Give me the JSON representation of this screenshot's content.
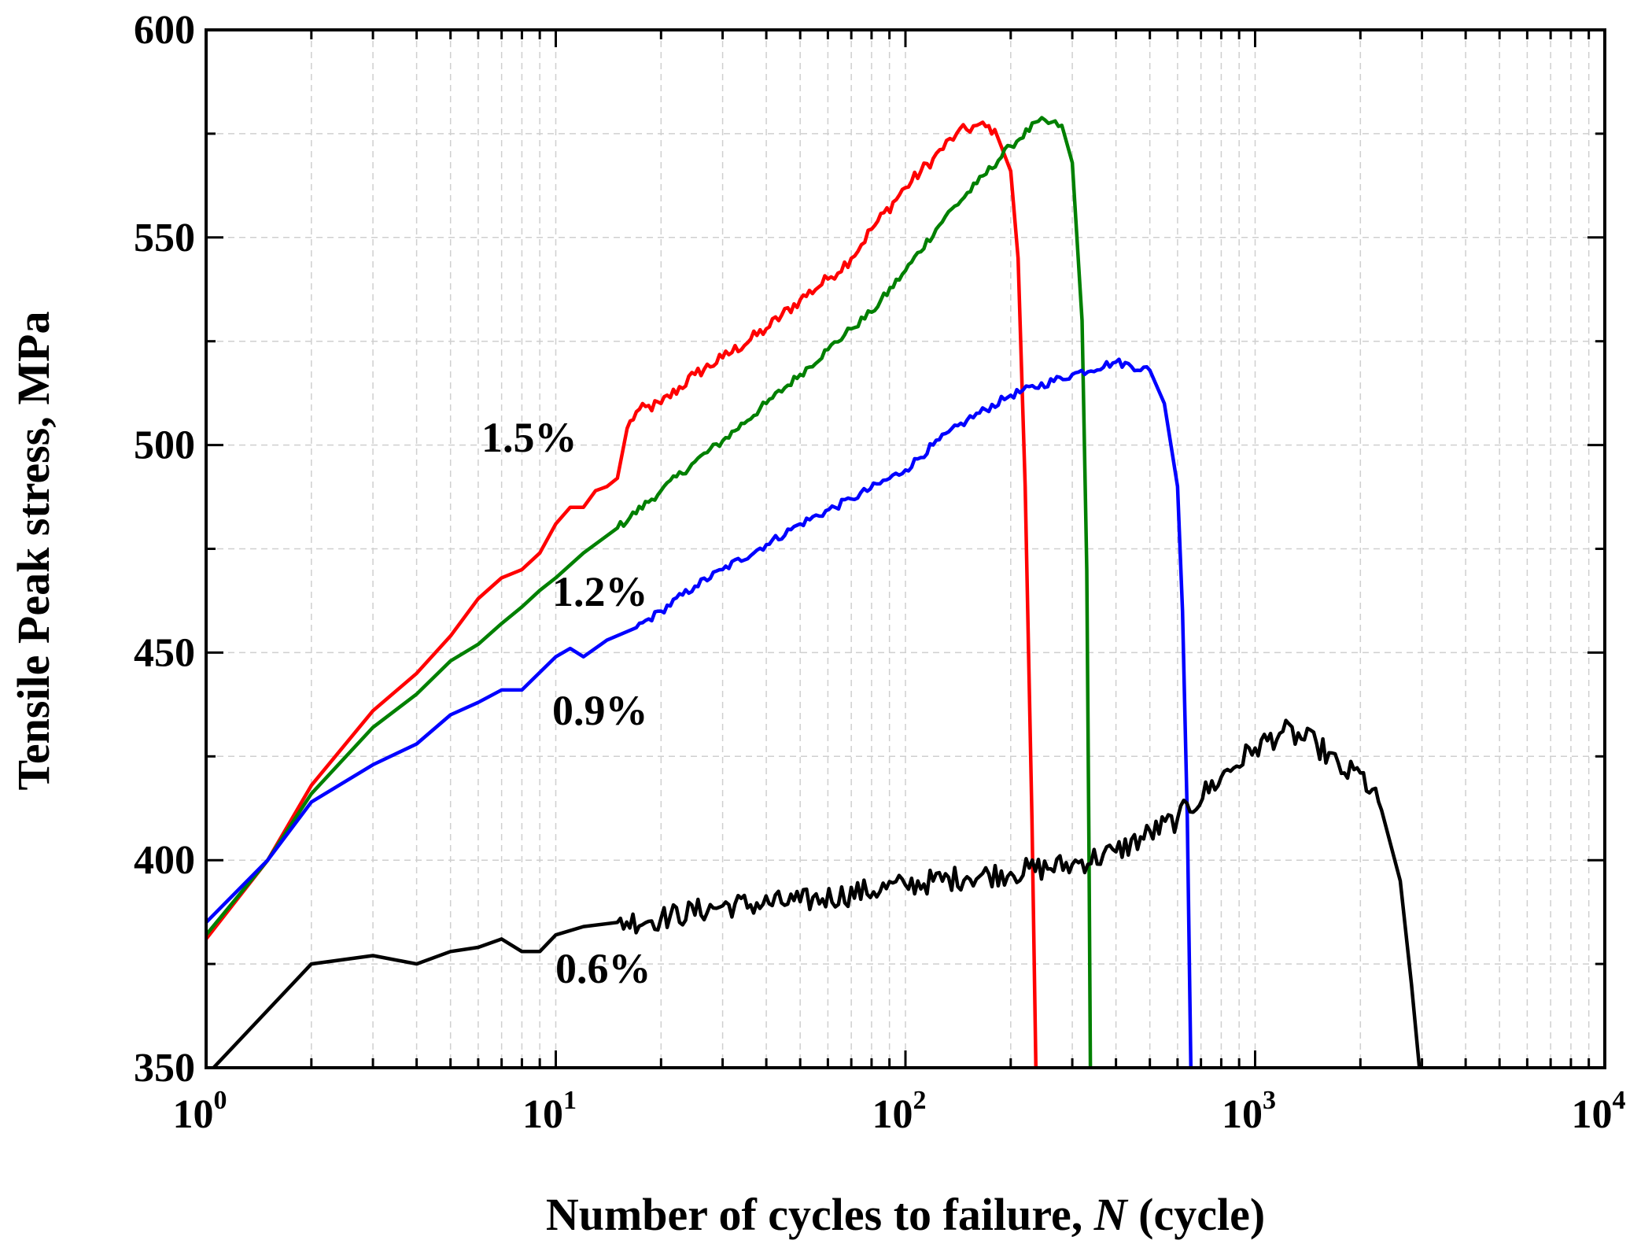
{
  "chart_data": {
    "type": "line",
    "xscale": "log",
    "xlim": [
      1,
      10000
    ],
    "ylim": [
      350,
      600
    ],
    "grid": true,
    "xlabel_prefix": "Number of cycles to failure, ",
    "xlabel_var": "N",
    "xlabel_suffix": " (cycle)",
    "ylabel": "Tensile Peak stress, MPa",
    "y_ticks": [
      350,
      400,
      450,
      500,
      550,
      600
    ],
    "x_ticks": [
      {
        "value": 1,
        "base": "10",
        "exp": "0"
      },
      {
        "value": 10,
        "base": "10",
        "exp": "1"
      },
      {
        "value": 100,
        "base": "10",
        "exp": "2"
      },
      {
        "value": 1000,
        "base": "10",
        "exp": "3"
      },
      {
        "value": 10000,
        "base": "10",
        "exp": "4"
      }
    ],
    "series": [
      {
        "name": "1.5%",
        "color": "#ff0000",
        "noise": 1.5,
        "label_at": [
          13,
          503
        ],
        "points": [
          [
            1,
            381
          ],
          [
            1.5,
            400
          ],
          [
            2,
            418
          ],
          [
            3,
            436
          ],
          [
            4,
            445
          ],
          [
            5,
            454
          ],
          [
            6,
            463
          ],
          [
            7,
            468
          ],
          [
            8,
            470
          ],
          [
            9,
            474
          ],
          [
            10,
            481
          ],
          [
            11,
            485
          ],
          [
            12,
            485
          ],
          [
            13,
            489
          ],
          [
            14,
            490
          ],
          [
            15,
            492
          ],
          [
            16,
            504
          ],
          [
            17,
            508
          ],
          [
            20,
            510
          ],
          [
            25,
            517
          ],
          [
            30,
            521
          ],
          [
            40,
            528
          ],
          [
            50,
            535
          ],
          [
            60,
            540
          ],
          [
            70,
            545
          ],
          [
            80,
            552
          ],
          [
            100,
            562
          ],
          [
            120,
            569
          ],
          [
            140,
            575
          ],
          [
            160,
            577
          ],
          [
            180,
            576
          ],
          [
            200,
            566
          ],
          [
            210,
            545
          ],
          [
            220,
            490
          ],
          [
            230,
            410
          ],
          [
            236,
            350
          ]
        ]
      },
      {
        "name": "1.2%",
        "color": "#008000",
        "noise": 1.0,
        "label_at": [
          24,
          463
        ],
        "points": [
          [
            1,
            382
          ],
          [
            1.5,
            400
          ],
          [
            2,
            416
          ],
          [
            3,
            432
          ],
          [
            4,
            440
          ],
          [
            5,
            448
          ],
          [
            6,
            452
          ],
          [
            7,
            457
          ],
          [
            8,
            461
          ],
          [
            9,
            465
          ],
          [
            10,
            468
          ],
          [
            12,
            474
          ],
          [
            15,
            480
          ],
          [
            20,
            489
          ],
          [
            25,
            496
          ],
          [
            30,
            501
          ],
          [
            40,
            510
          ],
          [
            50,
            517
          ],
          [
            60,
            523
          ],
          [
            70,
            528
          ],
          [
            80,
            532
          ],
          [
            100,
            542
          ],
          [
            130,
            555
          ],
          [
            160,
            563
          ],
          [
            200,
            572
          ],
          [
            240,
            578
          ],
          [
            280,
            577
          ],
          [
            300,
            568
          ],
          [
            320,
            530
          ],
          [
            330,
            470
          ],
          [
            335,
            400
          ],
          [
            338,
            350
          ]
        ]
      },
      {
        "name": "0.9%",
        "color": "#0000ff",
        "noise": 1.0,
        "label_at": [
          24,
          434
        ],
        "points": [
          [
            1,
            385
          ],
          [
            1.5,
            400
          ],
          [
            2,
            414
          ],
          [
            3,
            423
          ],
          [
            4,
            428
          ],
          [
            5,
            435
          ],
          [
            6,
            438
          ],
          [
            7,
            441
          ],
          [
            8,
            441
          ],
          [
            10,
            449
          ],
          [
            11,
            451
          ],
          [
            12,
            449
          ],
          [
            14,
            453
          ],
          [
            17,
            456
          ],
          [
            20,
            460
          ],
          [
            25,
            466
          ],
          [
            30,
            470
          ],
          [
            40,
            476
          ],
          [
            50,
            481
          ],
          [
            70,
            487
          ],
          [
            100,
            494
          ],
          [
            120,
            500
          ],
          [
            150,
            506
          ],
          [
            200,
            512
          ],
          [
            300,
            517
          ],
          [
            400,
            520
          ],
          [
            500,
            518
          ],
          [
            550,
            510
          ],
          [
            600,
            490
          ],
          [
            620,
            460
          ],
          [
            640,
            410
          ],
          [
            655,
            350
          ]
        ]
      },
      {
        "name": "0.6%",
        "color": "#000000",
        "noise": 3.0,
        "label_at": [
          24,
          370
        ],
        "points": [
          [
            1.05,
            350
          ],
          [
            2,
            375
          ],
          [
            3,
            377
          ],
          [
            4,
            375
          ],
          [
            5,
            378
          ],
          [
            6,
            379
          ],
          [
            7,
            381
          ],
          [
            8,
            378
          ],
          [
            9,
            378
          ],
          [
            10,
            382
          ],
          [
            12,
            384
          ],
          [
            15,
            385
          ],
          [
            20,
            386
          ],
          [
            30,
            389
          ],
          [
            50,
            390
          ],
          [
            100,
            394
          ],
          [
            150,
            396
          ],
          [
            200,
            397
          ],
          [
            300,
            399
          ],
          [
            400,
            402
          ],
          [
            600,
            410
          ],
          [
            800,
            420
          ],
          [
            1000,
            427
          ],
          [
            1200,
            431
          ],
          [
            1500,
            428
          ],
          [
            1800,
            421
          ],
          [
            2000,
            421
          ],
          [
            2300,
            412
          ],
          [
            2600,
            395
          ],
          [
            2800,
            370
          ],
          [
            2950,
            350
          ]
        ]
      }
    ]
  }
}
